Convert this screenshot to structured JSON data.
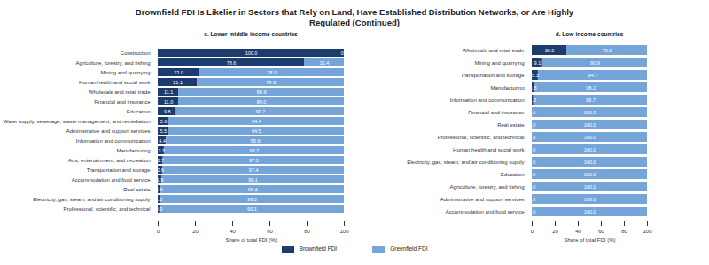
{
  "title": "Brownfield FDI Is Likelier in Sectors that Rely on Land, Have Established Distribution Networks, or Are Highly Regulated (Continued)",
  "chart_data": [
    {
      "type": "bar",
      "title": "c. Lower-middle-income countries",
      "orientation": "horizontal",
      "stacked": true,
      "data_labels": true,
      "x_label": "Share of total FDI (%)",
      "xlim": [
        0,
        100
      ],
      "xticks": [
        0,
        20,
        40,
        60,
        80,
        100
      ],
      "categories": [
        "Construction",
        "Agriculture, forestry, and fishing",
        "Mining and quarrying",
        "Human health and social work",
        "Wholesale and retail trade",
        "Financial and insurance",
        "Education",
        "Water supply, sewerage, waste management, and remediation",
        "Administrative and support services",
        "Information and communication",
        "Manufacturing",
        "Arts, entertainment, and recreation",
        "Transportation and storage",
        "Accommodation and food service",
        "Real estate",
        "Electricity, gas, steam, and air conditioning supply",
        "Professional, scientific, and technical"
      ],
      "series": [
        {
          "name": "Brownfield FDI",
          "color": "#1d3c6e",
          "values": [
            100.0,
            78.6,
            22.0,
            21.1,
            11.1,
            11.0,
            9.8,
            5.6,
            5.5,
            4.4,
            3.3,
            2.7,
            2.6,
            1.9,
            1.6,
            1.0,
            0.9
          ],
          "value_labels": [
            "100.0",
            "78.6",
            "22.0",
            "21.1",
            "11.1",
            "11.0",
            "9.8",
            "5.6",
            "5.5",
            "4.4",
            "3.3",
            "2.7",
            "2.6",
            "1.9",
            "1.6",
            "1.0",
            "0.9"
          ]
        },
        {
          "name": "Greenfield FDI",
          "color": "#75a5d8",
          "values": [
            0.0,
            21.4,
            78.0,
            78.9,
            88.9,
            89.0,
            90.2,
            94.4,
            94.5,
            95.6,
            96.7,
            97.3,
            97.4,
            98.1,
            98.4,
            99.0,
            99.1
          ],
          "value_labels": [
            "0.0",
            "21.4",
            "78.0",
            "78.9",
            "88.9",
            "89.0",
            "90.2",
            "94.4",
            "94.5",
            "95.6",
            "96.7",
            "97.3",
            "97.4",
            "98.1",
            "98.4",
            "99.0",
            "99.1"
          ]
        }
      ]
    },
    {
      "type": "bar",
      "title": "d. Low-income countries",
      "orientation": "horizontal",
      "stacked": true,
      "data_labels": true,
      "x_label": "Share of total FDI (%)",
      "xlim": [
        0,
        100
      ],
      "xticks": [
        0,
        20,
        40,
        60,
        80,
        100
      ],
      "categories": [
        "Wholesale and retail trade",
        "Mining and quarrying",
        "Transportation and storage",
        "Manufacturing",
        "Information and communication",
        "Financial and insurance",
        "Real estate",
        "Professional, scientific, and technical",
        "Human health and social work",
        "Electricity, gas, steam, and air conditioning supply",
        "Education",
        "Agriculture, forestry, and fishing",
        "Administrative and support services",
        "Accommodation and food service"
      ],
      "series": [
        {
          "name": "Brownfield FDI",
          "color": "#1d3c6e",
          "values": [
            30.0,
            9.1,
            5.3,
            1.8,
            1.3,
            0.0,
            0.0,
            0.0,
            0.0,
            0.0,
            0.0,
            0.0,
            0.0,
            0.0
          ],
          "value_labels": [
            "30.0",
            "9.1",
            "5.3",
            "1.8",
            "1.3",
            "0.0",
            "0.0",
            "0.0",
            "0.0",
            "0.0",
            "0.0",
            "0.0",
            "0.0",
            "0.0"
          ]
        },
        {
          "name": "Greenfield FDI",
          "color": "#75a5d8",
          "values": [
            70.0,
            90.9,
            94.7,
            98.2,
            98.7,
            100.0,
            100.0,
            100.0,
            100.0,
            100.0,
            100.0,
            100.0,
            100.0,
            100.0
          ],
          "value_labels": [
            "70.0",
            "90.9",
            "94.7",
            "98.2",
            "98.7",
            "100.0",
            "100.0",
            "100.0",
            "100.0",
            "100.0",
            "100.0",
            "100.0",
            "100.0",
            "100.0"
          ]
        }
      ]
    }
  ]
}
